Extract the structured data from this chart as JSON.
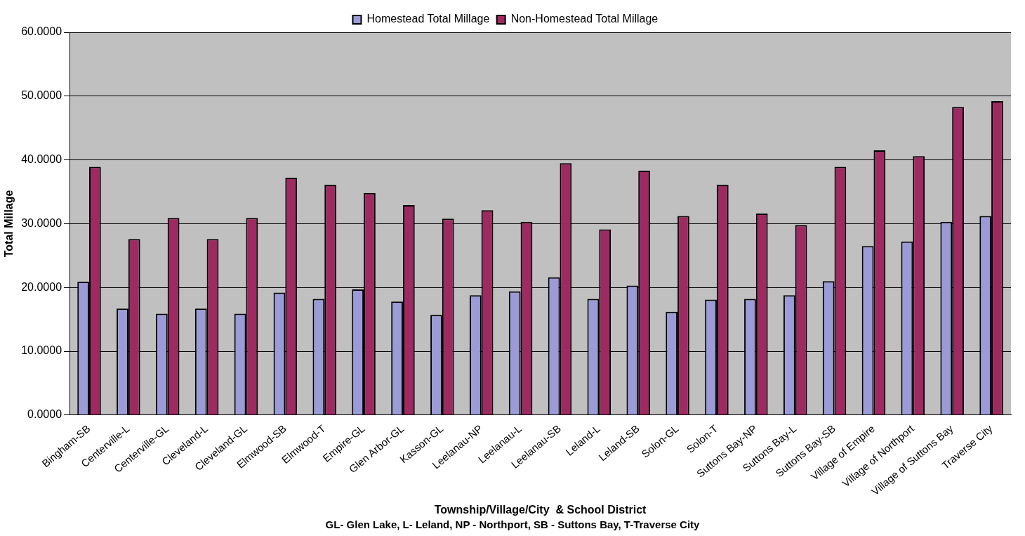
{
  "chart_data": {
    "type": "bar",
    "xlabel": "Township/Village/City  & School District",
    "ylabel": "Total Millage",
    "annotations": [
      "GL- Glen Lake,  L- Leland, NP - Northport, SB - Suttons Bay, T-Traverse City"
    ],
    "categories": [
      "Bingham-SB",
      "Centerville-L",
      "Centerville-GL",
      "Cleveland-L",
      "Cleveland-GL",
      "Elmwood-SB",
      "Elmwood-T",
      "Empire-GL",
      "Glen Arbor-GL",
      "Kasson-GL",
      "Leelanau-NP",
      "Leelanau-L",
      "Leelanau-SB",
      "Leland-L",
      "Leland-SB",
      "Solon-GL",
      "Solon-T",
      "Suttons Bay-NP",
      "Suttons Bay-L",
      "Suttons Bay-SB",
      "Village of Empire",
      "Village of Northport",
      "Village of Suttons Bay",
      "Traverse City"
    ],
    "series": [
      {
        "name": "Homestead Total Millage",
        "color": "#9b9bd8",
        "values": [
          20.9,
          16.7,
          15.9,
          16.7,
          15.9,
          19.2,
          18.2,
          19.7,
          17.8,
          15.7,
          18.8,
          19.4,
          21.6,
          18.2,
          20.3,
          16.2,
          18.1,
          18.2,
          18.8,
          21.0,
          26.5,
          27.2,
          30.3,
          31.2
        ]
      },
      {
        "name": "Non-Homestead Total Millage",
        "color": "#9e2a62",
        "values": [
          38.9,
          27.6,
          30.9,
          27.6,
          30.9,
          37.2,
          36.1,
          34.8,
          32.9,
          30.8,
          32.1,
          30.3,
          39.5,
          29.1,
          38.3,
          31.2,
          36.1,
          31.6,
          29.8,
          38.9,
          41.5,
          40.6,
          48.3,
          49.2
        ]
      }
    ],
    "ylim": [
      0,
      60
    ],
    "yticks": [
      {
        "value": 0,
        "label": "0.0000"
      },
      {
        "value": 10,
        "label": "10.0000"
      },
      {
        "value": 20,
        "label": "20.0000"
      },
      {
        "value": 30,
        "label": "30.0000"
      },
      {
        "value": 40,
        "label": "40.0000"
      },
      {
        "value": 50,
        "label": "50.0000"
      },
      {
        "value": 60,
        "label": "60.0000"
      }
    ],
    "grid": "y",
    "legend": "top"
  }
}
